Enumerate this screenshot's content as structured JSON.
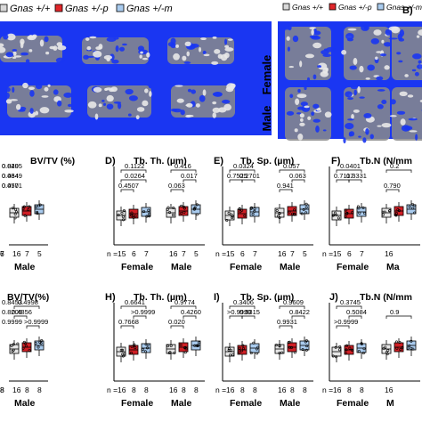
{
  "legend": [
    {
      "label": "Gnas +/+",
      "color": "#d9d9d9"
    },
    {
      "label": "Gnas +/-p",
      "color": "#e0262a"
    },
    {
      "label": "Gnas +/-m",
      "color": "#a9cbee"
    }
  ],
  "panel_B": {
    "letter": "B)",
    "rows": [
      "Female",
      "Male"
    ]
  },
  "colors": {
    "micro_ct_bg": "#1a36f2",
    "bone": "#b9b9b9",
    "box_default": "#e6e6e6"
  },
  "chart_data": [
    {
      "id": "row1-bvtv",
      "type": "box",
      "letter": "",
      "title": "BV/TV (%)",
      "brackets": [
        {
          "from": 0,
          "to": 2,
          "label": "0.0405",
          "level": 2
        },
        {
          "from": 0,
          "to": 1,
          "label": "0.0649",
          "level": 1
        },
        {
          "from": 0,
          "to": 0,
          "label": "0.4501",
          "level": 0
        },
        {
          "from": 1,
          "to": 2,
          "label": "0.829",
          "level": 2
        },
        {
          "from": 1,
          "to": 1,
          "label": "0.434",
          "level": 1
        },
        {
          "from": 1,
          "to": 1,
          "label": "0.077",
          "level": 0
        }
      ],
      "n_labels": [
        "6",
        "7",
        "16",
        "7",
        "5"
      ],
      "groups": [
        "",
        "Male"
      ]
    },
    {
      "id": "row1-tbth",
      "type": "box",
      "letter": "D)",
      "title": "Tb. Th. (µm)",
      "brackets": [
        {
          "from": 0,
          "to": 2,
          "label": "0.1122",
          "level": 2
        },
        {
          "from": 0,
          "to": 1,
          "label": "0.4507",
          "level": 0
        },
        {
          "from": 0,
          "to": 2,
          "label": "0.0264",
          "level": 1
        },
        {
          "from": 3,
          "to": 5,
          "label": "0.416",
          "level": 2
        },
        {
          "from": 4,
          "to": 5,
          "label": "0.017",
          "level": 1
        },
        {
          "from": 3,
          "to": 4,
          "label": "0.063",
          "level": 0
        }
      ],
      "n_labels": [
        "n =15",
        "6",
        "7",
        "16",
        "7",
        "5"
      ],
      "groups": [
        "Female",
        "Male"
      ]
    },
    {
      "id": "row1-tbsp",
      "type": "box",
      "letter": "E)",
      "title": "Tb. Sp. (µm)",
      "brackets": [
        {
          "from": 0,
          "to": 2,
          "label": "0.0324",
          "level": 2
        },
        {
          "from": 1,
          "to": 2,
          "label": "0.2701",
          "level": 1
        },
        {
          "from": 0,
          "to": 1,
          "label": "0.7525",
          "level": 1
        },
        {
          "from": 3,
          "to": 5,
          "label": "0.057",
          "level": 2
        },
        {
          "from": 4,
          "to": 5,
          "label": "0.063",
          "level": 1
        },
        {
          "from": 3,
          "to": 4,
          "label": "0.941",
          "level": 0
        }
      ],
      "n_labels": [
        "n =15",
        "6",
        "7",
        "16",
        "7",
        "5"
      ],
      "groups": [
        "Female",
        "Male"
      ]
    },
    {
      "id": "row1-tbn",
      "type": "box",
      "letter": "F)",
      "title": "Tb.N (N/mm",
      "brackets": [
        {
          "from": 0,
          "to": 2,
          "label": "0.0401",
          "level": 2
        },
        {
          "from": 1,
          "to": 2,
          "label": "0.3331",
          "level": 1
        },
        {
          "from": 0,
          "to": 1,
          "label": "0.7117",
          "level": 1
        },
        {
          "from": 3,
          "to": 5,
          "label": "0.2",
          "level": 2
        },
        {
          "from": 3,
          "to": 4,
          "label": "0.790",
          "level": 0
        }
      ],
      "n_labels": [
        "n =15",
        "6",
        "7",
        "16"
      ],
      "groups": [
        "Female",
        "Ma"
      ]
    },
    {
      "id": "row2-bvtv",
      "type": "box",
      "letter": "",
      "title": "BV/TV(%)",
      "brackets": [
        {
          "from": 0,
          "to": 2,
          "label": "0.8453",
          "level": 2
        },
        {
          "from": 0,
          "to": 1,
          "label": "0.8205",
          "level": 1
        },
        {
          "from": 0,
          "to": 0,
          "label": "0.9999",
          "level": 0
        },
        {
          "from": 3,
          "to": 5,
          "label": "0.4998",
          "level": 2
        },
        {
          "from": 3,
          "to": 4,
          "label": "0.4856",
          "level": 1
        },
        {
          "from": 4,
          "to": 5,
          "label": ">0.9999",
          "level": 0
        }
      ],
      "n_labels": [
        "8",
        "8",
        "16",
        "8",
        "8"
      ],
      "groups": [
        "",
        "Male"
      ]
    },
    {
      "id": "row2-tbth",
      "type": "box",
      "letter": "H)",
      "title": "Tb. Th. (µm)",
      "brackets": [
        {
          "from": 0,
          "to": 2,
          "label": "0.6641",
          "level": 2
        },
        {
          "from": 1,
          "to": 2,
          "label": ">0.9999",
          "level": 1
        },
        {
          "from": 0,
          "to": 1,
          "label": "0.7668",
          "level": 0
        },
        {
          "from": 3,
          "to": 5,
          "label": "0.9774",
          "level": 2
        },
        {
          "from": 4,
          "to": 5,
          "label": "0.4260",
          "level": 1
        },
        {
          "from": 3,
          "to": 4,
          "label": "0.020",
          "level": 0
        }
      ],
      "n_labels": [
        "n =16",
        "8",
        "8",
        "16",
        "8",
        "8"
      ],
      "groups": [
        "Female",
        "Male"
      ]
    },
    {
      "id": "row2-tbsp",
      "type": "box",
      "letter": "I)",
      "title": "Tb. Sp. (µm)",
      "brackets": [
        {
          "from": 0,
          "to": 2,
          "label": "0.3406",
          "level": 2
        },
        {
          "from": 1,
          "to": 2,
          "label": "0.5315",
          "level": 1
        },
        {
          "from": 0,
          "to": 1,
          "label": ">0.9999",
          "level": 1
        },
        {
          "from": 3,
          "to": 5,
          "label": "0.9609",
          "level": 2
        },
        {
          "from": 4,
          "to": 5,
          "label": "0.8422",
          "level": 1
        },
        {
          "from": 3,
          "to": 4,
          "label": "0.9931",
          "level": 0
        }
      ],
      "n_labels": [
        "n =16",
        "8",
        "8",
        "16",
        "8",
        "8"
      ],
      "groups": [
        "Female",
        "Male"
      ]
    },
    {
      "id": "row2-tbn",
      "type": "box",
      "letter": "J)",
      "title": "Tb.N (N/mm",
      "brackets": [
        {
          "from": 0,
          "to": 2,
          "label": "0.3745",
          "level": 2
        },
        {
          "from": 1,
          "to": 2,
          "label": "0.5084",
          "level": 1
        },
        {
          "from": 0,
          "to": 1,
          "label": ">0.9999",
          "level": 0
        },
        {
          "from": 3,
          "to": 5,
          "label": "0.9",
          "level": 1
        }
      ],
      "n_labels": [
        "n =16",
        "8",
        "8",
        "16"
      ],
      "groups": [
        "Female",
        "M"
      ]
    }
  ]
}
